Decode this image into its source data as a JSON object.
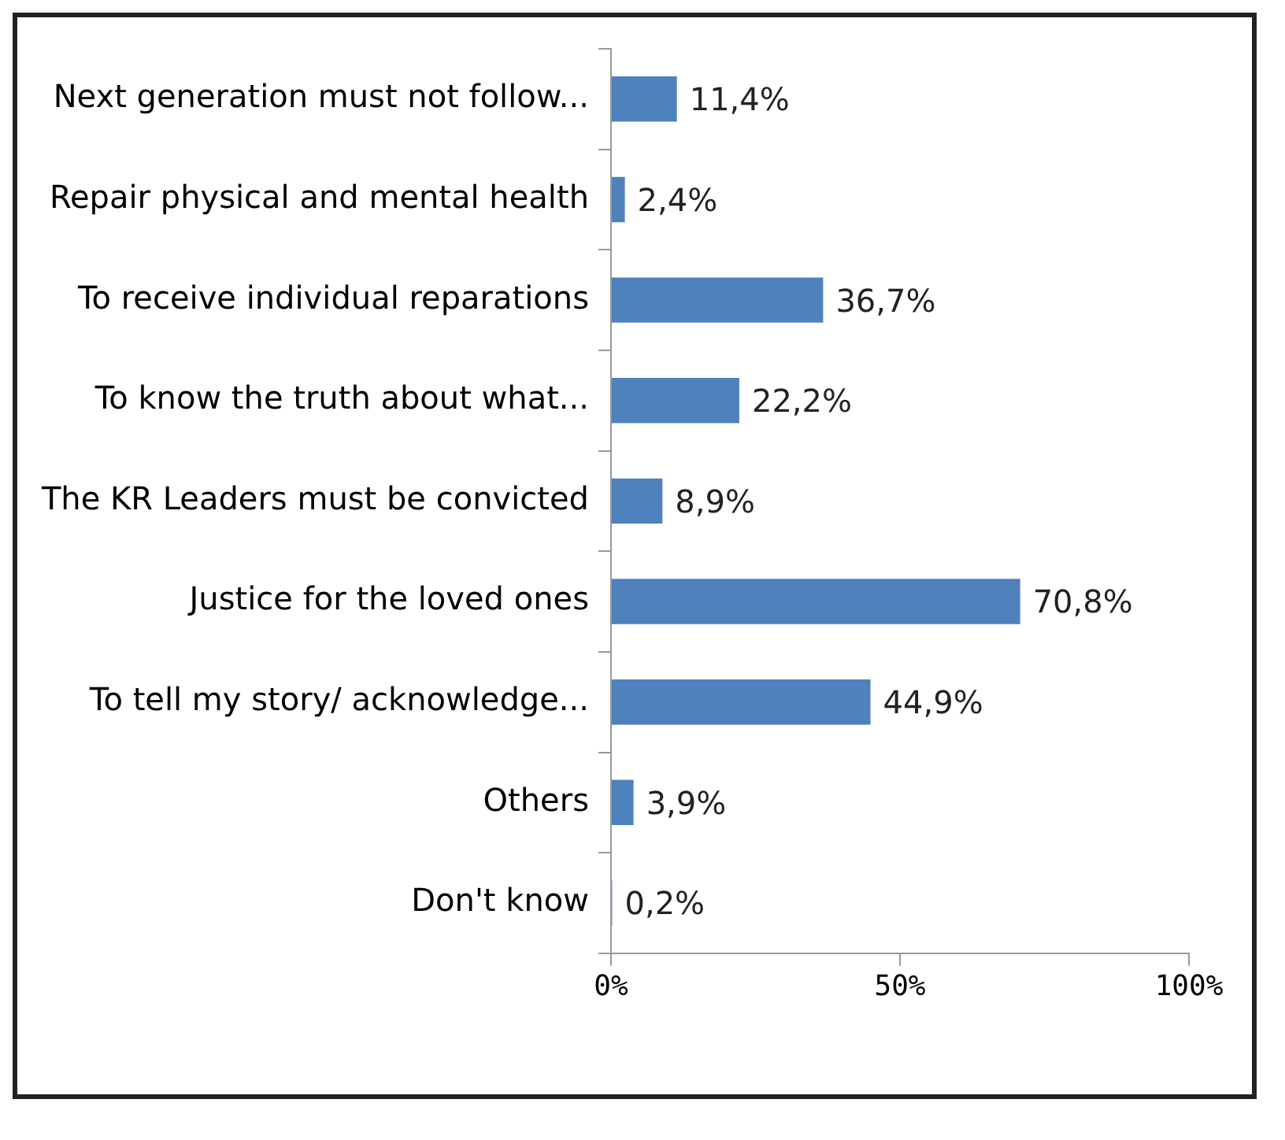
{
  "chart_data": {
    "type": "bar",
    "orientation": "horizontal",
    "categories": [
      "Next generation must not follow...",
      "Repair physical and mental health",
      "To receive individual reparations",
      "To know the truth about what...",
      "The KR Leaders must be convicted",
      "Justice for the loved ones",
      "To tell my story/ acknowledge...",
      "Others",
      "Don't know"
    ],
    "values": [
      11.4,
      2.4,
      36.7,
      22.2,
      8.9,
      70.8,
      44.9,
      3.9,
      0.2
    ],
    "value_labels": [
      "11,4%",
      "2,4%",
      "36,7%",
      "22,2%",
      "8,9%",
      "70,8%",
      "44,9%",
      "3,9%",
      "0,2%"
    ],
    "color": "#4f81bd",
    "xlim": [
      0,
      100
    ],
    "xticks": [
      {
        "value": 0,
        "label": "0%"
      },
      {
        "value": 50,
        "label": "50%"
      },
      {
        "value": 100,
        "label": "100%"
      }
    ],
    "grid": false,
    "legend": false
  }
}
